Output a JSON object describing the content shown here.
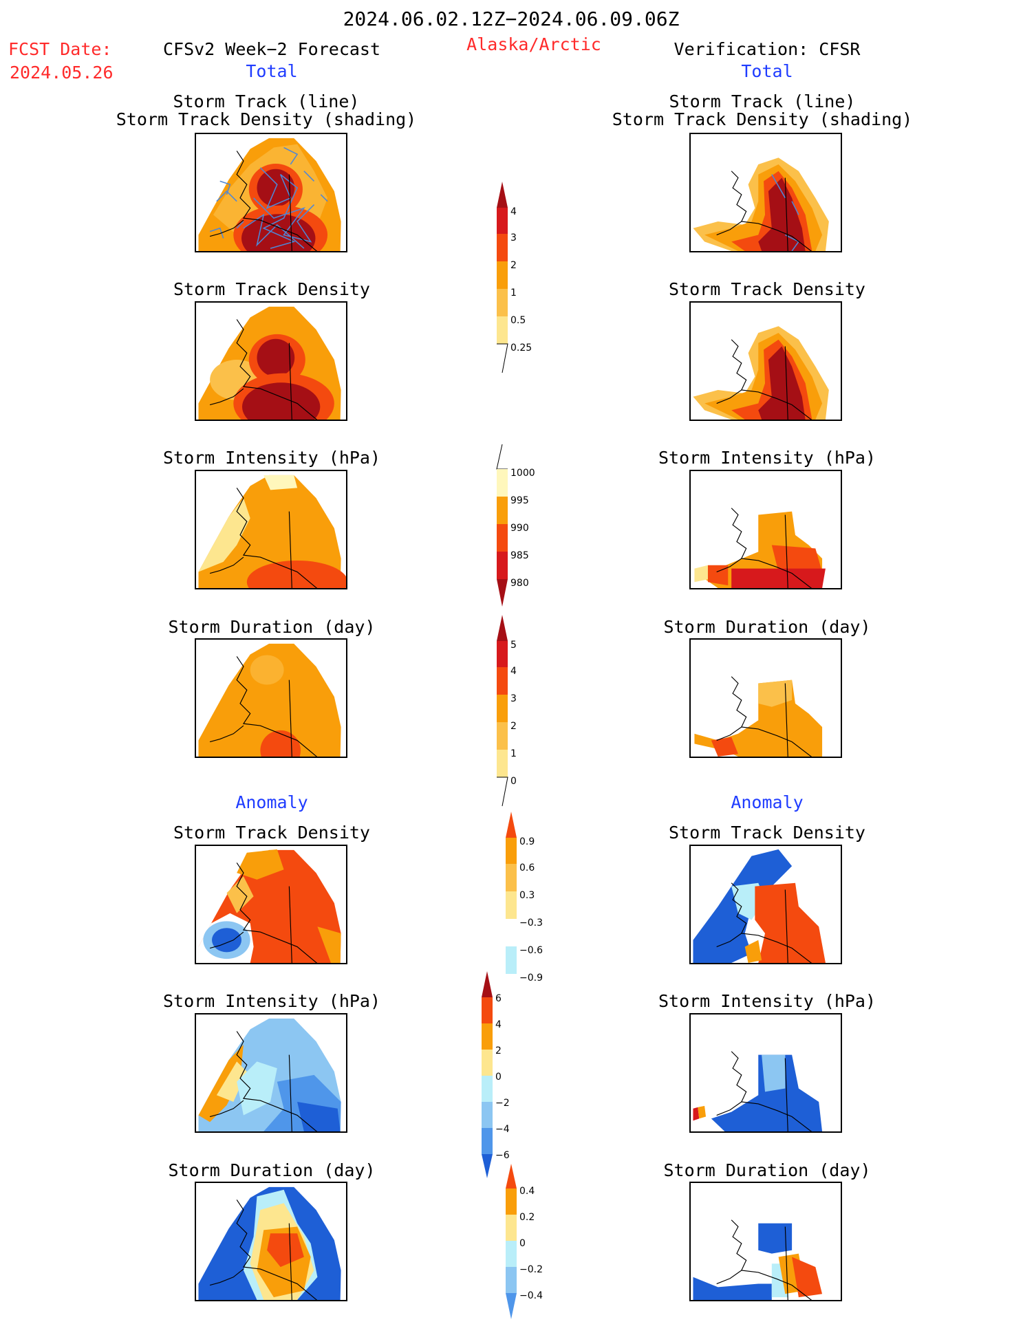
{
  "header": {
    "period": "2024.06.02.12Z−2024.06.09.06Z",
    "fcst_label": "FCST Date:",
    "fcst_date": "2024.05.26",
    "region": "Alaska/Arctic",
    "left_title": "CFSv2 Week−2 Forecast",
    "right_title": "Verification: CFSR",
    "left_section_total": "Total",
    "right_section_total": "Total",
    "left_section_anom": "Anomaly",
    "right_section_anom": "Anomaly"
  },
  "panels": {
    "row1_line1": "Storm Track (line)",
    "row1_line2": "Storm Track Density (shading)",
    "density": "Storm Track Density",
    "intensity": "Storm Intensity (hPa)",
    "duration": "Storm Duration (day)"
  },
  "colorbars": {
    "track_density": [
      "4",
      "3",
      "2",
      "1",
      "0.5",
      "0.25"
    ],
    "intensity": [
      "1000",
      "995",
      "990",
      "985",
      "980"
    ],
    "duration": [
      "5",
      "4",
      "3",
      "2",
      "1",
      "0"
    ],
    "density_anom": [
      "0.9",
      "0.6",
      "0.3",
      "−0.3",
      "−0.6",
      "−0.9"
    ],
    "intensity_anom": [
      "6",
      "4",
      "2",
      "0",
      "−2",
      "−4",
      "−6"
    ],
    "duration_anom": [
      "0.4",
      "0.2",
      "0",
      "−0.2",
      "−0.4"
    ]
  },
  "colors": {
    "dark_red": "#a50f15",
    "red": "#d7191c",
    "red_orange": "#f44a0f",
    "orange": "#f99e0a",
    "light_orange": "#fbc04a",
    "yellow": "#fde68f",
    "pale_yellow": "#fff7bc",
    "white": "#ffffff",
    "pale_blue": "#b9eef9",
    "light_blue": "#8cc6f2",
    "mid_blue": "#4f96ea",
    "blue": "#1e5fd6",
    "track_line": "#4f87d6"
  }
}
